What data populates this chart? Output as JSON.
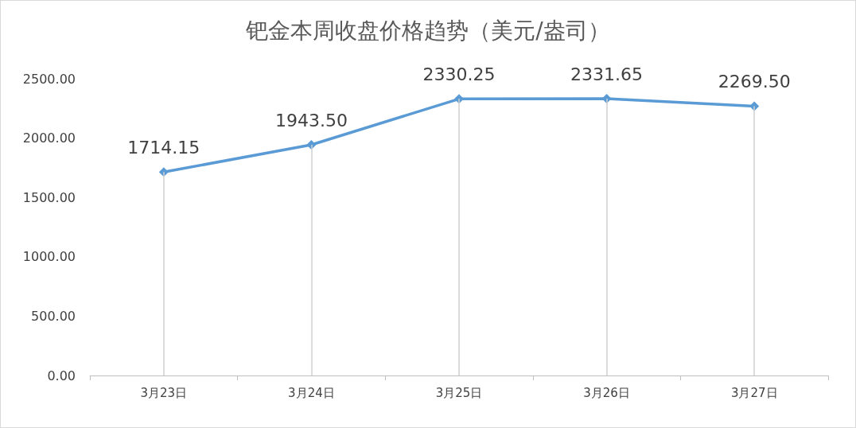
{
  "chart_data": {
    "type": "line",
    "title": "钯金本周收盘价格趋势（美元/盎司）",
    "categories": [
      "3月23日",
      "3月24日",
      "3月25日",
      "3月26日",
      "3月27日"
    ],
    "series": [
      {
        "color": "#5b9bd5",
        "values": [
          1714.15,
          1943.5,
          2330.25,
          2331.65,
          2269.5
        ]
      }
    ],
    "value_labels": [
      "1714.15",
      "1943.50",
      "2330.25",
      "2331.65",
      "2269.50"
    ],
    "ylim": [
      0,
      2500
    ],
    "yticks": [
      {
        "value": 0,
        "label": "0.00"
      },
      {
        "value": 500,
        "label": "500.00"
      },
      {
        "value": 1000,
        "label": "1000.00"
      },
      {
        "value": 1500,
        "label": "1500.00"
      },
      {
        "value": 2000,
        "label": "2000.00"
      },
      {
        "value": 2500,
        "label": "2500.00"
      }
    ],
    "grid": "x",
    "marker": "diamond",
    "line_style": "solid"
  }
}
